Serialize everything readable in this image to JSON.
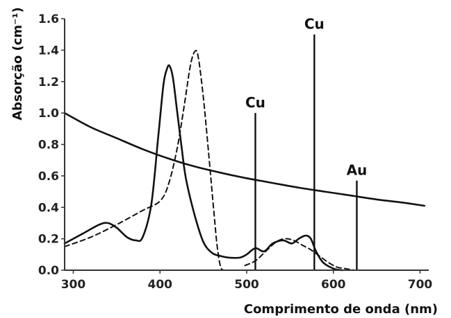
{
  "chart_data": {
    "type": "line",
    "title": "",
    "xlabel": "Comprimento de onda (nm)",
    "ylabel": "Absorção (cm⁻¹)",
    "xlim": [
      290,
      710
    ],
    "ylim": [
      0,
      1.6
    ],
    "x_ticks": [
      {
        "value": 300,
        "label": "300"
      },
      {
        "value": 400,
        "label": "400"
      },
      {
        "value": 500,
        "label": "500"
      },
      {
        "value": 600,
        "label": "600"
      },
      {
        "value": 700,
        "label": "700"
      }
    ],
    "y_ticks": [
      {
        "value": 0.0,
        "label": "0.0"
      },
      {
        "value": 0.2,
        "label": "0.2"
      },
      {
        "value": 0.4,
        "label": "0.4"
      },
      {
        "value": 0.6,
        "label": "0.6"
      },
      {
        "value": 0.8,
        "label": "0.8"
      },
      {
        "value": 1.0,
        "label": "1.0"
      },
      {
        "value": 1.2,
        "label": "1.2"
      },
      {
        "value": 1.4,
        "label": "1.4"
      },
      {
        "value": 1.6,
        "label": "1.6"
      }
    ],
    "grid": false,
    "series": [
      {
        "style": "solid",
        "color": "#111111",
        "points": [
          [
            290,
            0.17
          ],
          [
            310,
            0.23
          ],
          [
            330,
            0.29
          ],
          [
            340,
            0.3
          ],
          [
            350,
            0.27
          ],
          [
            362,
            0.21
          ],
          [
            372,
            0.19
          ],
          [
            380,
            0.21
          ],
          [
            390,
            0.42
          ],
          [
            398,
            0.85
          ],
          [
            404,
            1.18
          ],
          [
            408,
            1.28
          ],
          [
            411,
            1.3
          ],
          [
            415,
            1.22
          ],
          [
            420,
            1.0
          ],
          [
            425,
            0.78
          ],
          [
            430,
            0.58
          ],
          [
            440,
            0.35
          ],
          [
            450,
            0.18
          ],
          [
            460,
            0.11
          ],
          [
            470,
            0.09
          ],
          [
            480,
            0.08
          ],
          [
            492,
            0.08
          ],
          [
            500,
            0.1
          ],
          [
            510,
            0.14
          ],
          [
            520,
            0.12
          ],
          [
            530,
            0.17
          ],
          [
            542,
            0.19
          ],
          [
            552,
            0.17
          ],
          [
            560,
            0.2
          ],
          [
            568,
            0.22
          ],
          [
            574,
            0.2
          ],
          [
            580,
            0.12
          ],
          [
            588,
            0.05
          ],
          [
            600,
            0.01
          ],
          [
            610,
            0.0
          ]
        ]
      },
      {
        "style": "dashed",
        "color": "#111111",
        "points": [
          [
            290,
            0.15
          ],
          [
            320,
            0.21
          ],
          [
            350,
            0.29
          ],
          [
            380,
            0.38
          ],
          [
            400,
            0.44
          ],
          [
            410,
            0.55
          ],
          [
            420,
            0.78
          ],
          [
            428,
            1.05
          ],
          [
            435,
            1.3
          ],
          [
            440,
            1.39
          ],
          [
            444,
            1.36
          ],
          [
            450,
            1.1
          ],
          [
            456,
            0.75
          ],
          [
            462,
            0.38
          ],
          [
            466,
            0.15
          ],
          [
            470,
            0.02
          ],
          [
            474,
            0.0
          ]
        ]
      },
      {
        "style": "dashed",
        "color": "#111111",
        "points": [
          [
            498,
            0.03
          ],
          [
            510,
            0.06
          ],
          [
            522,
            0.12
          ],
          [
            534,
            0.18
          ],
          [
            544,
            0.2
          ],
          [
            554,
            0.19
          ],
          [
            564,
            0.16
          ],
          [
            574,
            0.13
          ],
          [
            584,
            0.09
          ],
          [
            594,
            0.05
          ],
          [
            604,
            0.02
          ],
          [
            614,
            0.01
          ],
          [
            624,
            0.0
          ]
        ]
      },
      {
        "style": "solid",
        "color": "#111111",
        "points": [
          [
            290,
            1.0
          ],
          [
            320,
            0.91
          ],
          [
            350,
            0.84
          ],
          [
            380,
            0.77
          ],
          [
            410,
            0.71
          ],
          [
            440,
            0.66
          ],
          [
            470,
            0.62
          ],
          [
            500,
            0.585
          ],
          [
            530,
            0.555
          ],
          [
            560,
            0.525
          ],
          [
            590,
            0.5
          ],
          [
            620,
            0.475
          ],
          [
            650,
            0.45
          ],
          [
            680,
            0.43
          ],
          [
            705,
            0.41
          ]
        ]
      }
    ],
    "spectral_lines": [
      {
        "label": "Cu",
        "x": 510,
        "height": 1.0
      },
      {
        "label": "Cu",
        "x": 578,
        "height": 1.5
      },
      {
        "label": "Au",
        "x": 627,
        "height": 0.57
      }
    ]
  }
}
